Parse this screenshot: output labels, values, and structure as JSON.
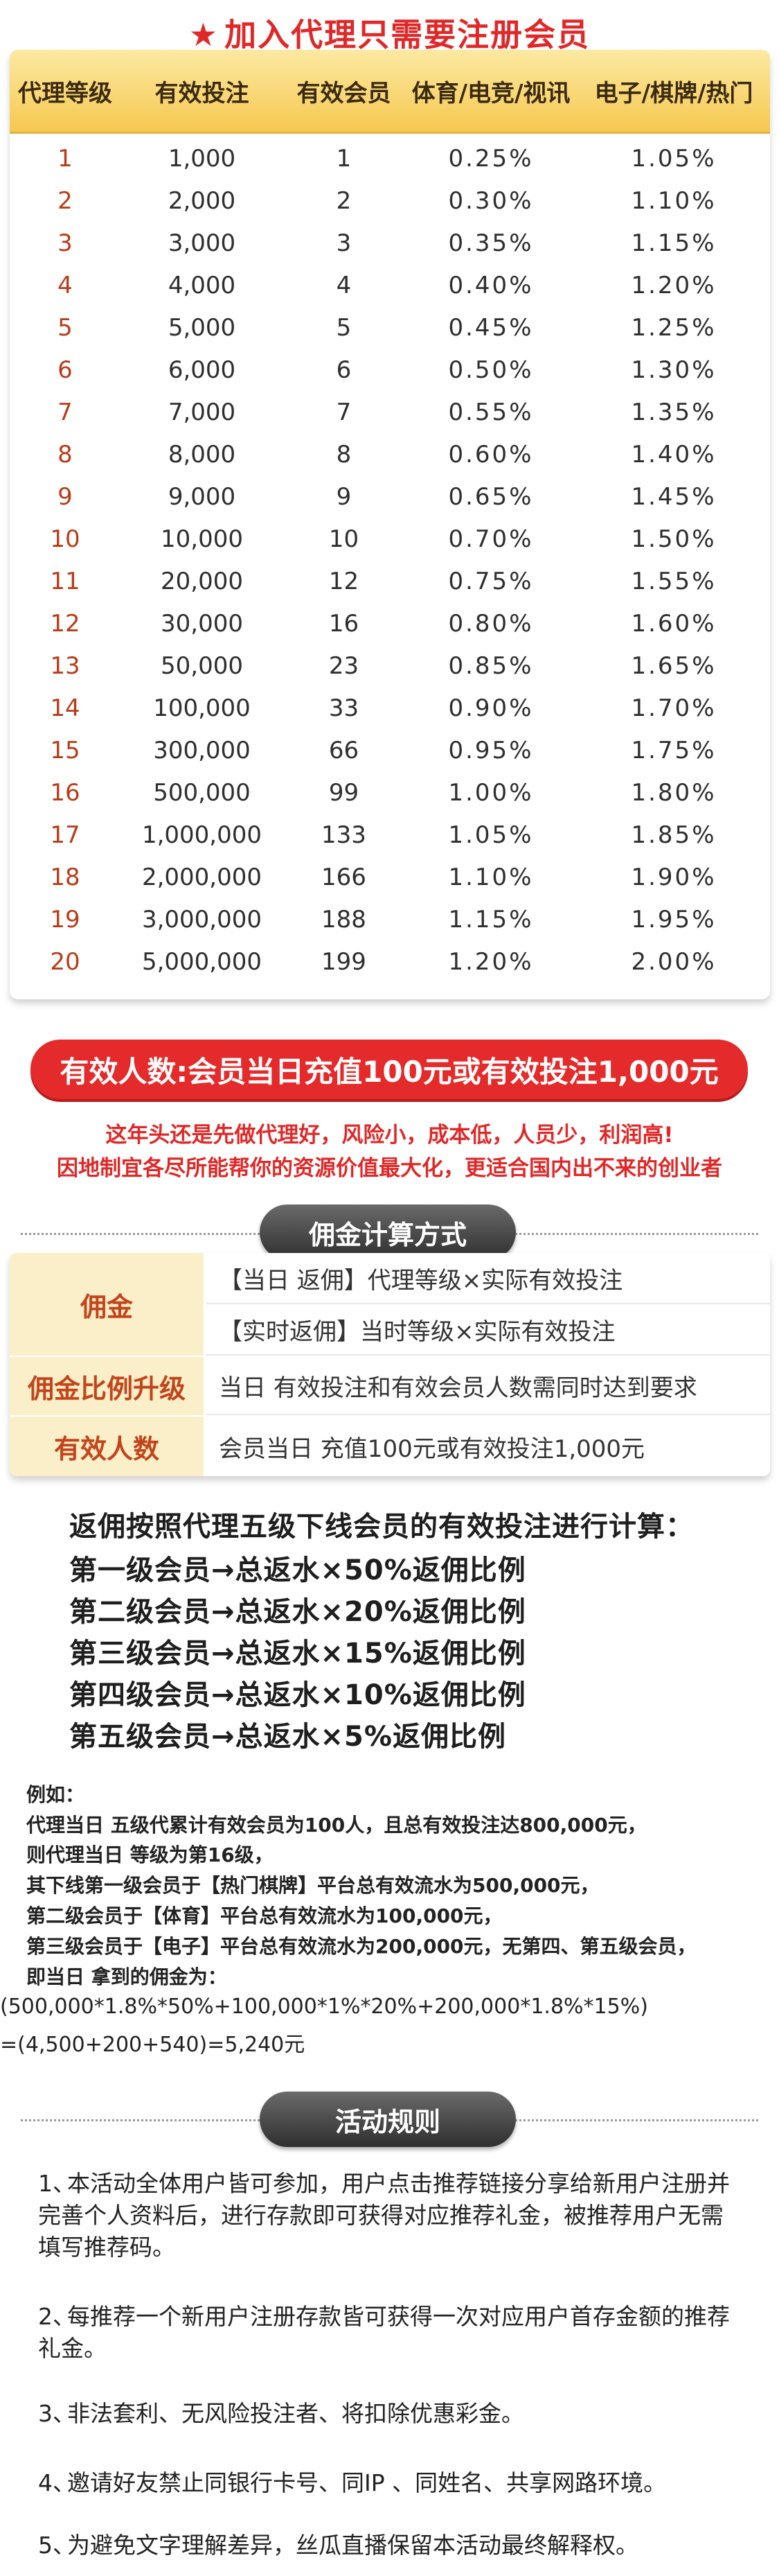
{
  "header": {
    "title": "加入代理只需要注册会员",
    "star_icon": "star-icon"
  },
  "level_table": {
    "columns": [
      "代理等级",
      "有效投注",
      "有效会员",
      "体育/电竞/视讯",
      "电子/棋牌/热门"
    ],
    "rows": [
      [
        "1",
        "1,000",
        "1",
        "0.25%",
        "1.05%"
      ],
      [
        "2",
        "2,000",
        "2",
        "0.30%",
        "1.10%"
      ],
      [
        "3",
        "3,000",
        "3",
        "0.35%",
        "1.15%"
      ],
      [
        "4",
        "4,000",
        "4",
        "0.40%",
        "1.20%"
      ],
      [
        "5",
        "5,000",
        "5",
        "0.45%",
        "1.25%"
      ],
      [
        "6",
        "6,000",
        "6",
        "0.50%",
        "1.30%"
      ],
      [
        "7",
        "7,000",
        "7",
        "0.55%",
        "1.35%"
      ],
      [
        "8",
        "8,000",
        "8",
        "0.60%",
        "1.40%"
      ],
      [
        "9",
        "9,000",
        "9",
        "0.65%",
        "1.45%"
      ],
      [
        "10",
        "10,000",
        "10",
        "0.70%",
        "1.50%"
      ],
      [
        "11",
        "20,000",
        "12",
        "0.75%",
        "1.55%"
      ],
      [
        "12",
        "30,000",
        "16",
        "0.80%",
        "1.60%"
      ],
      [
        "13",
        "50,000",
        "23",
        "0.85%",
        "1.65%"
      ],
      [
        "14",
        "100,000",
        "33",
        "0.90%",
        "1.70%"
      ],
      [
        "15",
        "300,000",
        "66",
        "0.95%",
        "1.75%"
      ],
      [
        "16",
        "500,000",
        "99",
        "1.00%",
        "1.80%"
      ],
      [
        "17",
        "1,000,000",
        "133",
        "1.05%",
        "1.85%"
      ],
      [
        "18",
        "2,000,000",
        "166",
        "1.10%",
        "1.90%"
      ],
      [
        "19",
        "3,000,000",
        "188",
        "1.15%",
        "1.95%"
      ],
      [
        "20",
        "5,000,000",
        "199",
        "1.20%",
        "2.00%"
      ]
    ]
  },
  "banner": {
    "text": "有效人数:会员当日充值100元或有效投注1,000元"
  },
  "slogans": [
    "这年头还是先做代理好，风险小，成本低，人员少，利润高!",
    "因地制宜各尽所能帮你的资源价值最大化，更适合国内出不来的创业者"
  ],
  "calc": {
    "title": "佣金计算方式",
    "label_commission": "佣金",
    "commission_rows": [
      "【当日 返佣】代理等级×实际有效投注",
      "【实时返佣】当时等级×实际有效投注"
    ],
    "label_upgrade": "佣金比例升级",
    "upgrade_text": "当日 有效投注和有效会员人数需同时达到要求",
    "label_valid": "有效人数",
    "valid_text": "会员当日 充值100元或有效投注1,000元"
  },
  "rebate": {
    "intro": "返佣按照代理五级下线会员的有效投注进行计算：",
    "levels": [
      "第一级会员→总返水×50%返佣比例",
      "第二级会员→总返水×20%返佣比例",
      "第三级会员→总返水×15%返佣比例",
      "第四级会员→总返水×10%返佣比例",
      "第五级会员→总返水×5%返佣比例"
    ]
  },
  "example": {
    "lines": [
      "例如：",
      "代理当日 五级代累计有效会员为100人，且总有效投注达800,000元，",
      "则代理当日 等级为第16级，",
      "其下线第一级会员于【热门棋牌】平台总有效流水为500,000元，",
      "第二级会员于【体育】平台总有效流水为100,000元，",
      "第三级会员于【电子】平台总有效流水为200,000元，无第四、第五级会员，",
      "即当日 拿到的佣金为：",
      "(500,000*1.8%*50%+100,000*1%*20%+200,000*1.8%*15%)",
      "=(4,500+200+540)=5,240元"
    ]
  },
  "rules": {
    "title": "活动规则",
    "items": [
      {
        "num": "1、",
        "text": "本活动全体用户皆可参加，用户点击推荐链接分享给新用户注册并完善个人资料后，进行存款即可获得对应推荐礼金，被推荐用户无需填写推荐码。"
      },
      {
        "num": "2、",
        "text": "每推荐一个新用户注册存款皆可获得一次对应用户首存金额的推荐礼金。"
      },
      {
        "num": "3、",
        "text": "非法套利、无风险投注者、将扣除优惠彩金。"
      },
      {
        "num": "4、",
        "text": "邀请好友禁止同银行卡号、同IP 、同姓名、共享网路环境。"
      },
      {
        "num": "5、",
        "text": "为避免文字理解差异，丝瓜直播保留本活动最终解释权。"
      }
    ]
  }
}
